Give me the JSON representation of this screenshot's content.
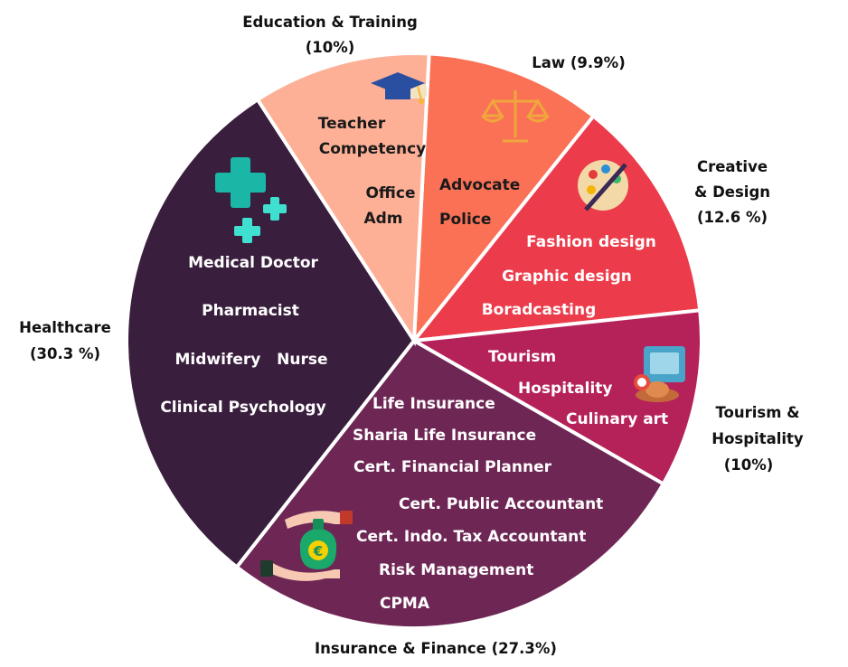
{
  "chart_data": {
    "type": "pie",
    "title": "",
    "slices": [
      {
        "label": "Law",
        "pct_text": "(9.9%)",
        "value": 9.9,
        "color": "#fa7156",
        "items": [
          "Advocate",
          "Police"
        ],
        "icon": "scales-icon"
      },
      {
        "label": "Creative & Design",
        "pct_text": "(12.6 %)",
        "value": 12.6,
        "color": "#ec3c4b",
        "items": [
          "Fashion design",
          "Graphic design",
          "Boradcasting"
        ],
        "icon": "palette-brush-icon"
      },
      {
        "label": "Tourism & Hospitality",
        "pct_text": "(10%)",
        "value": 10,
        "color": "#b5225a",
        "items": [
          "Tourism",
          "Hospitality",
          "Culinary art"
        ],
        "icon": "travel-hat-icon"
      },
      {
        "label": "Insurance & Finance",
        "pct_text": "(27.3%)",
        "value": 27.3,
        "color": "#6e2755",
        "items": [
          "Life Insurance",
          "Sharia Life Insurance",
          "Cert. Financial Planner",
          "Cert. Public Accountant",
          "Cert. Indo. Tax Accountant",
          "Risk Management",
          "CPMA"
        ],
        "icon": "money-bag-icon"
      },
      {
        "label": "Healthcare",
        "pct_text": "(30.3 %)",
        "value": 30.3,
        "color": "#3a1e3d",
        "items": [
          "Medical Doctor",
          "Pharmacist",
          "Midwifery   Nurse",
          "Clinical Psychology"
        ],
        "icon": "medical-cross-icon"
      },
      {
        "label": "Education & Training",
        "pct_text": "(10%)",
        "value": 10,
        "color": "#fdb096",
        "items": [
          "Teacher",
          "Competency",
          "Office",
          "Adm"
        ],
        "icon": "graduation-cap-icon"
      }
    ],
    "legend": "none"
  },
  "colors": {
    "separator": "#ffffff",
    "outer_text": "#111111",
    "light_text": "#ffffff",
    "dark_text": "#1a1a1a",
    "icon_teal": "#1bb7a6",
    "icon_gold": "#f0a63c"
  }
}
